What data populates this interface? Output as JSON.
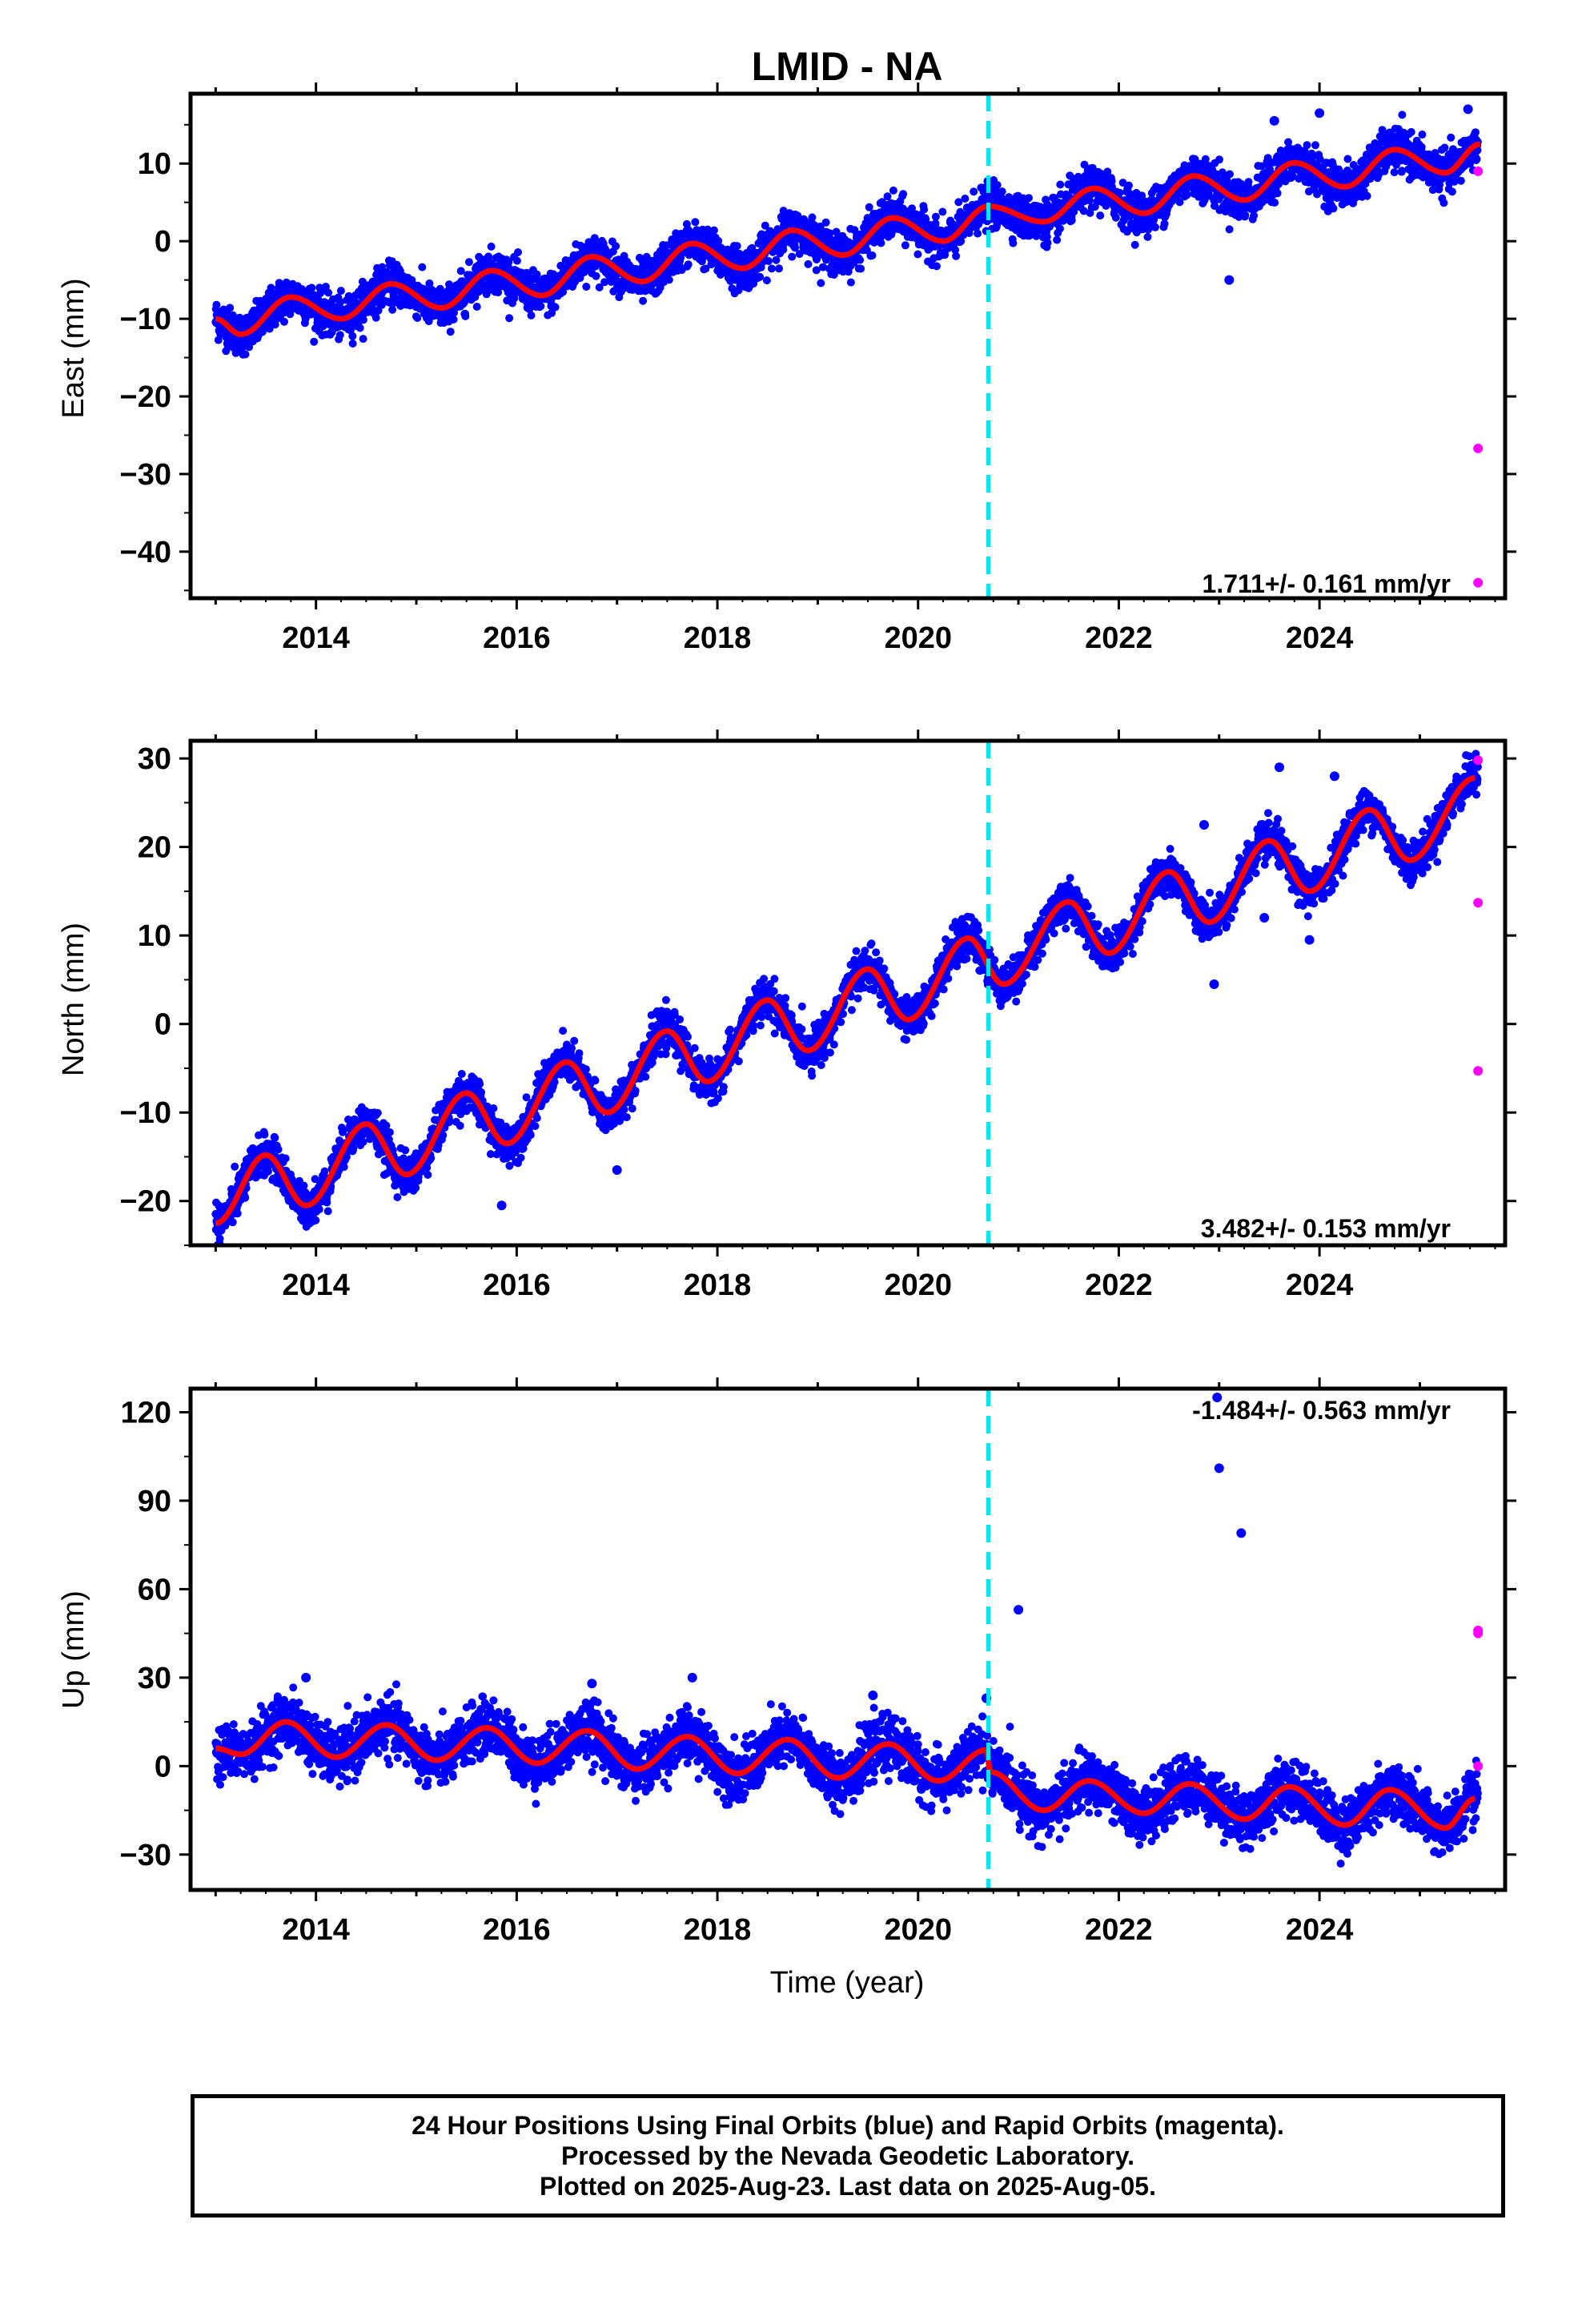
{
  "title": "LMID - NA",
  "chart_data": [
    {
      "type": "scatter",
      "panel": "east",
      "ylabel": "East (mm)",
      "xlabel": "",
      "xlim": [
        2012.75,
        2025.85
      ],
      "ylim": [
        -46,
        19
      ],
      "yticks": [
        -40,
        -30,
        -20,
        -10,
        0,
        10
      ],
      "xticks": [
        2014,
        2016,
        2018,
        2020,
        2022,
        2024
      ],
      "rate_label": "1.711+/- 0.161 mm/yr",
      "offset_epoch": 2020.7,
      "fit_curve": {
        "color": "#ff0000",
        "points": [
          [
            2013.0,
            -10.0
          ],
          [
            2013.25,
            -12.0
          ],
          [
            2013.75,
            -7.2
          ],
          [
            2014.25,
            -10.0
          ],
          [
            2014.75,
            -5.5
          ],
          [
            2015.25,
            -8.6
          ],
          [
            2015.75,
            -3.8
          ],
          [
            2016.25,
            -7.0
          ],
          [
            2016.75,
            -2.0
          ],
          [
            2017.25,
            -5.2
          ],
          [
            2017.75,
            -0.3
          ],
          [
            2018.25,
            -3.5
          ],
          [
            2018.75,
            1.4
          ],
          [
            2019.25,
            -1.8
          ],
          [
            2019.75,
            3.0
          ],
          [
            2020.25,
            0.0
          ],
          [
            2020.7,
            4.5
          ],
          [
            2021.25,
            2.5
          ],
          [
            2021.75,
            6.8
          ],
          [
            2022.25,
            3.6
          ],
          [
            2022.75,
            8.4
          ],
          [
            2023.25,
            5.3
          ],
          [
            2023.75,
            10.1
          ],
          [
            2024.25,
            7.0
          ],
          [
            2024.75,
            11.8
          ],
          [
            2025.25,
            8.8
          ],
          [
            2025.6,
            12.5
          ]
        ]
      },
      "series": [
        {
          "name": "Final Orbits",
          "color": "#0000ff",
          "amplitude": 1.6,
          "noise": 1.3
        },
        {
          "name": "Rapid Orbits",
          "color": "#ff00ff",
          "points": [
            [
              2025.58,
              9.0
            ],
            [
              2025.58,
              -26.7
            ],
            [
              2025.58,
              -44.0
            ]
          ]
        }
      ],
      "outliers": [
        [
          2023.1,
          -5.0
        ],
        [
          2024.0,
          16.5
        ],
        [
          2023.55,
          15.5
        ],
        [
          2025.48,
          17.0
        ]
      ]
    },
    {
      "type": "scatter",
      "panel": "north",
      "ylabel": "North (mm)",
      "xlabel": "",
      "xlim": [
        2012.75,
        2025.85
      ],
      "ylim": [
        -25,
        32
      ],
      "yticks": [
        -20,
        -10,
        0,
        10,
        20,
        30
      ],
      "xticks": [
        2014,
        2016,
        2018,
        2020,
        2022,
        2024
      ],
      "rate_label": "3.482+/- 0.153 mm/yr",
      "offset_epoch": 2020.7,
      "fit_curve": {
        "color": "#ff0000",
        "points": [
          [
            2013.0,
            -22.5
          ],
          [
            2013.5,
            -14.8
          ],
          [
            2013.9,
            -20.5
          ],
          [
            2014.5,
            -11.3
          ],
          [
            2014.9,
            -17.0
          ],
          [
            2015.5,
            -7.8
          ],
          [
            2015.9,
            -13.5
          ],
          [
            2016.5,
            -4.3
          ],
          [
            2016.9,
            -10.0
          ],
          [
            2017.5,
            -0.8
          ],
          [
            2017.9,
            -6.5
          ],
          [
            2018.5,
            2.7
          ],
          [
            2018.9,
            -3.0
          ],
          [
            2019.5,
            6.2
          ],
          [
            2019.9,
            0.5
          ],
          [
            2020.5,
            9.7
          ],
          [
            2020.85,
            4.5
          ],
          [
            2021.5,
            13.8
          ],
          [
            2021.9,
            8.0
          ],
          [
            2022.5,
            17.2
          ],
          [
            2022.9,
            11.5
          ],
          [
            2023.5,
            20.7
          ],
          [
            2023.9,
            15.0
          ],
          [
            2024.5,
            24.2
          ],
          [
            2024.9,
            18.5
          ],
          [
            2025.55,
            27.8
          ]
        ]
      },
      "series": [
        {
          "name": "Final Orbits",
          "color": "#0000ff",
          "amplitude": 4.6,
          "noise": 1.1
        },
        {
          "name": "Rapid Orbits",
          "color": "#ff00ff",
          "points": [
            [
              2025.58,
              29.8
            ],
            [
              2025.58,
              13.7
            ],
            [
              2025.58,
              -5.3
            ]
          ]
        }
      ],
      "outliers": [
        [
          2015.85,
          -20.5
        ],
        [
          2017.0,
          -16.5
        ],
        [
          2022.95,
          4.5
        ],
        [
          2023.45,
          12.0
        ],
        [
          2023.6,
          29.0
        ],
        [
          2024.15,
          28.0
        ],
        [
          2023.9,
          9.5
        ],
        [
          2022.85,
          22.5
        ]
      ]
    },
    {
      "type": "scatter",
      "panel": "up",
      "ylabel": "Up (mm)",
      "xlabel": "Time (year)",
      "xlim": [
        2012.75,
        2025.85
      ],
      "ylim": [
        -42,
        128
      ],
      "yticks": [
        -30,
        0,
        30,
        60,
        90,
        120
      ],
      "xticks": [
        2014,
        2016,
        2018,
        2020,
        2022,
        2024
      ],
      "rate_label": "-1.484+/- 0.563 mm/yr",
      "offset_epoch": 2020.7,
      "fit_curve": {
        "color": "#ff0000",
        "points": [
          [
            2013.0,
            6.0
          ],
          [
            2013.25,
            4.0
          ],
          [
            2013.7,
            15.0
          ],
          [
            2014.2,
            3.0
          ],
          [
            2014.7,
            14.0
          ],
          [
            2015.2,
            2.0
          ],
          [
            2015.7,
            13.0
          ],
          [
            2016.2,
            1.0
          ],
          [
            2016.7,
            12.0
          ],
          [
            2017.2,
            -1.0
          ],
          [
            2017.7,
            10.0
          ],
          [
            2018.2,
            -2.5
          ],
          [
            2018.7,
            9.0
          ],
          [
            2019.2,
            -4.0
          ],
          [
            2019.7,
            7.5
          ],
          [
            2020.2,
            -5.0
          ],
          [
            2020.68,
            5.5
          ],
          [
            2020.72,
            -2.0
          ],
          [
            2021.25,
            -15.0
          ],
          [
            2021.7,
            -5.0
          ],
          [
            2022.25,
            -16.0
          ],
          [
            2022.7,
            -6.0
          ],
          [
            2023.25,
            -18.0
          ],
          [
            2023.7,
            -7.0
          ],
          [
            2024.25,
            -20.0
          ],
          [
            2024.7,
            -8.0
          ],
          [
            2025.25,
            -21.0
          ],
          [
            2025.55,
            -11.0
          ]
        ]
      },
      "series": [
        {
          "name": "Final Orbits",
          "color": "#0000ff",
          "amplitude": 5.5,
          "noise": 4.5
        },
        {
          "name": "Rapid Orbits",
          "color": "#ff00ff",
          "points": [
            [
              2025.58,
              46.0
            ],
            [
              2025.58,
              45.0
            ],
            [
              2025.58,
              0.0
            ]
          ]
        }
      ],
      "outliers": [
        [
          2021.0,
          53.0
        ],
        [
          2023.0,
          101.0
        ],
        [
          2023.22,
          79.0
        ],
        [
          2022.98,
          125.0
        ],
        [
          2020.68,
          23.0
        ],
        [
          2017.75,
          30.0
        ],
        [
          2019.55,
          24.0
        ],
        [
          2013.9,
          30.0
        ],
        [
          2016.75,
          28.0
        ]
      ]
    }
  ],
  "footer": {
    "line1": "24 Hour Positions Using Final Orbits (blue) and Rapid Orbits (magenta).",
    "line2": "Processed by the Nevada Geodetic Laboratory.",
    "line3": "Plotted on 2025-Aug-23. Last data on 2025-Aug-05."
  },
  "colors": {
    "final": "#0000ff",
    "rapid": "#ff00ff",
    "fit": "#ff0000",
    "offset_line": "#00e5ee"
  }
}
